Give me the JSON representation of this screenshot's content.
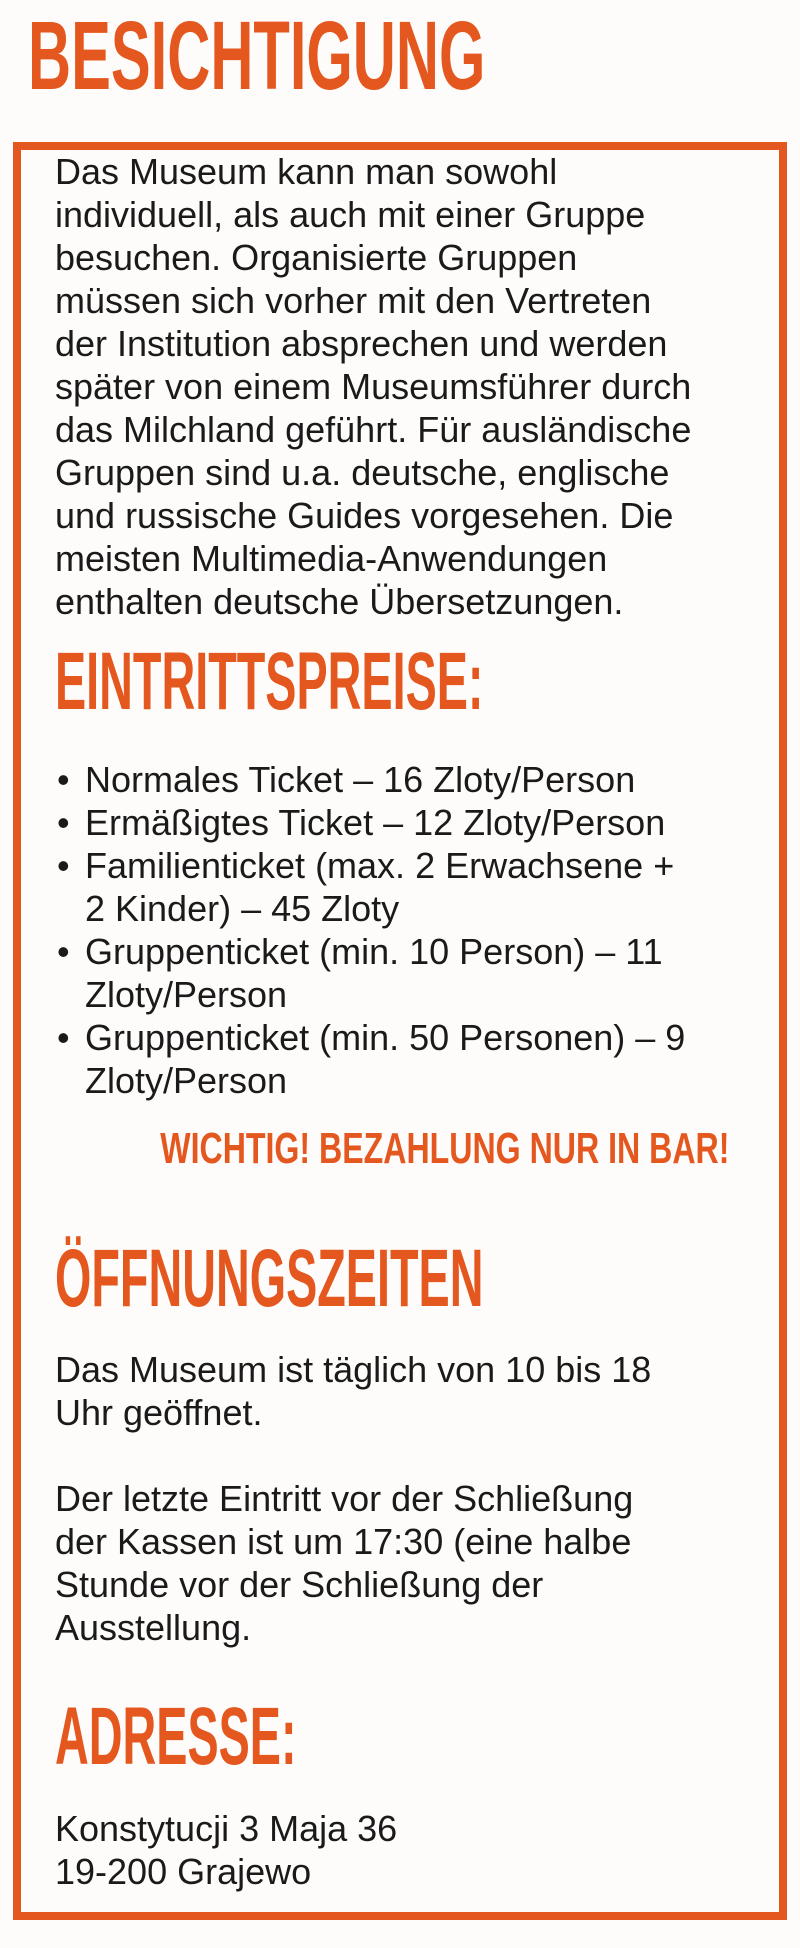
{
  "page": {
    "title": "BESICHTIGUNG"
  },
  "theme": {
    "accent": "#E4571E",
    "background": "#FDFCFA",
    "text": "#1A1A1A"
  },
  "intro": {
    "text": "Das Museum kann man sowohl\nindividuell, als auch mit einer Gruppe\nbesuchen. Organisierte Gruppen\nmüssen sich vorher mit den Vertreten\nder Institution absprechen und werden\nspäter von einem Museumsführer durch\ndas Milchland geführt. Für ausländische\nGruppen sind u.a. deutsche, englische\nund russische Guides vorgesehen. Die\nmeisten Multimedia-Anwendungen\nenthalten deutsche Übersetzungen."
  },
  "prices": {
    "heading": "EINTRITTSPREISE:",
    "items": [
      "Normales Ticket – 16 Zloty/Person",
      "Ermäßigtes Ticket – 12 Zloty/Person",
      "Familienticket (max. 2 Erwachsene +\n2 Kinder) – 45 Zloty",
      "Gruppenticket (min. 10 Person) – 11\nZloty/Person",
      "Gruppenticket (min. 50 Personen) – 9\nZloty/Person"
    ],
    "notice": "WICHTIG! BEZAHLUNG NUR IN BAR!"
  },
  "opening_hours": {
    "heading": "ÖFFNUNGSZEITEN",
    "paragraphs": [
      "Das Museum ist täglich von 10 bis 18\nUhr geöffnet.",
      "Der letzte Eintritt vor der Schließung\nder Kassen ist um 17:30 (eine halbe\nStunde vor der Schließung der\nAusstellung."
    ]
  },
  "address": {
    "heading": "ADRESSE:",
    "text": "Konstytucji 3 Maja 36\n19-200 Grajewo"
  }
}
